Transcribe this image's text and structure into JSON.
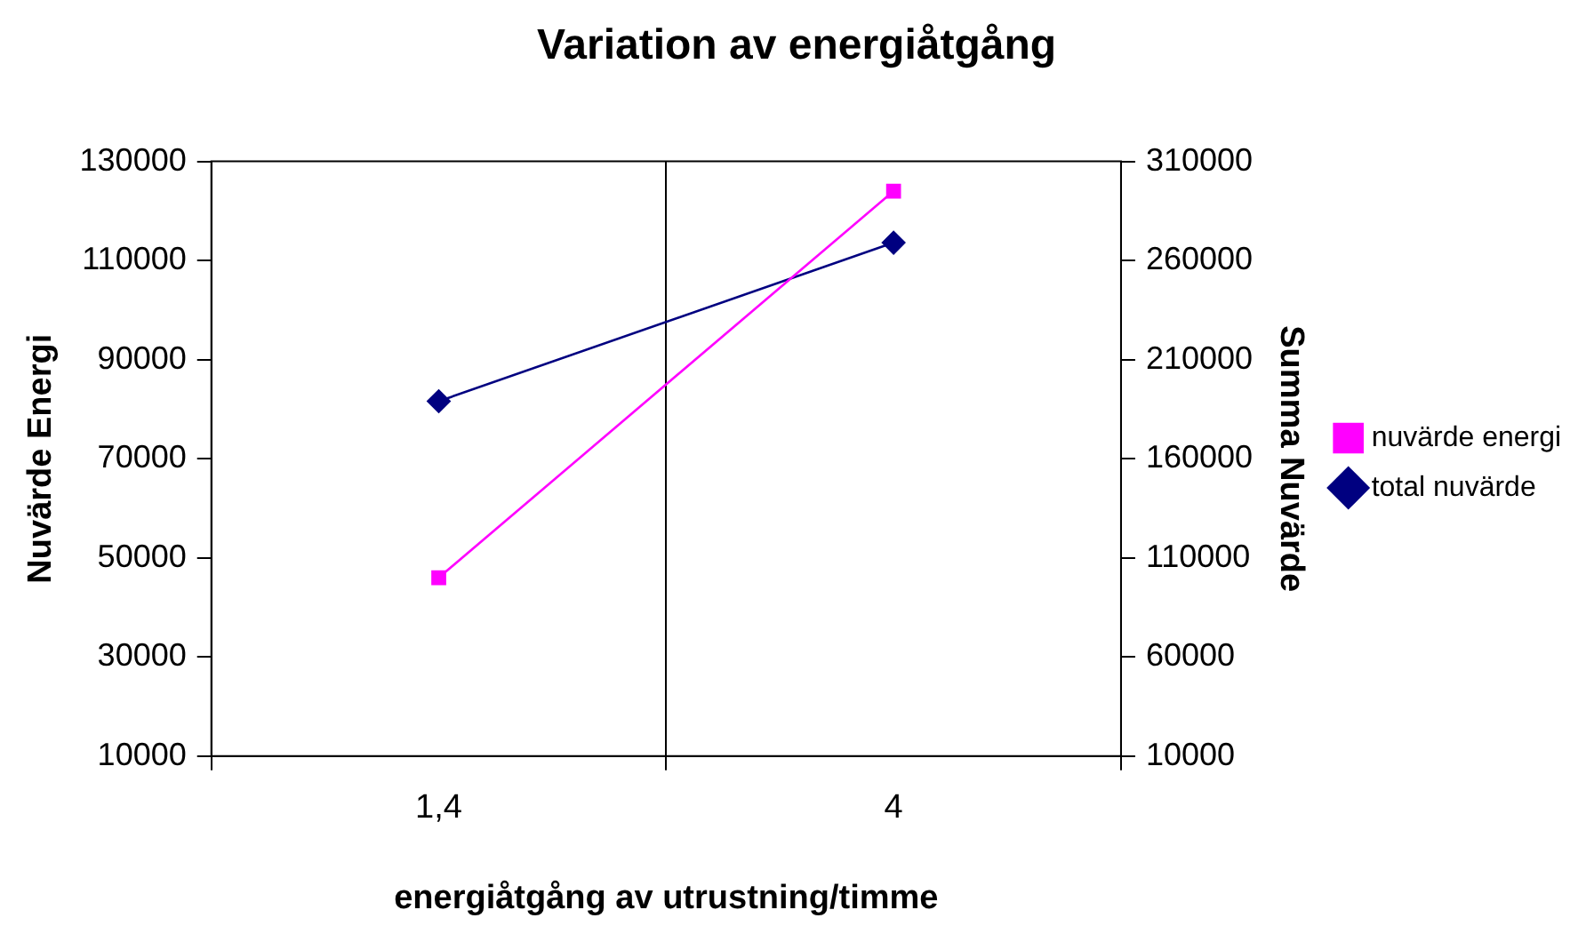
{
  "chart_data": {
    "type": "line",
    "title": "Variation av energiåtgång",
    "xlabel": "energiåtgång av utrustning/timme",
    "ylabel": "Nuvärde Energi",
    "y2label": "Summa Nuvärde",
    "categories": [
      "1,4",
      "4"
    ],
    "series": [
      {
        "name": "nuvärde energi",
        "color": "#ff00ff",
        "values": [
          46000,
          124000
        ],
        "marker": "square"
      },
      {
        "name": "total nuvärde",
        "color": "#000080",
        "values": [
          189000,
          269000
        ],
        "axis": "y2",
        "marker": "diamond"
      }
    ],
    "ylim": [
      10000,
      130000
    ],
    "yticks": [
      10000,
      30000,
      50000,
      70000,
      90000,
      110000,
      130000
    ],
    "y2lim": [
      10000,
      310000
    ],
    "y2ticks": [
      10000,
      60000,
      110000,
      160000,
      210000,
      260000,
      310000
    ],
    "grid": "x",
    "legend": "right"
  }
}
